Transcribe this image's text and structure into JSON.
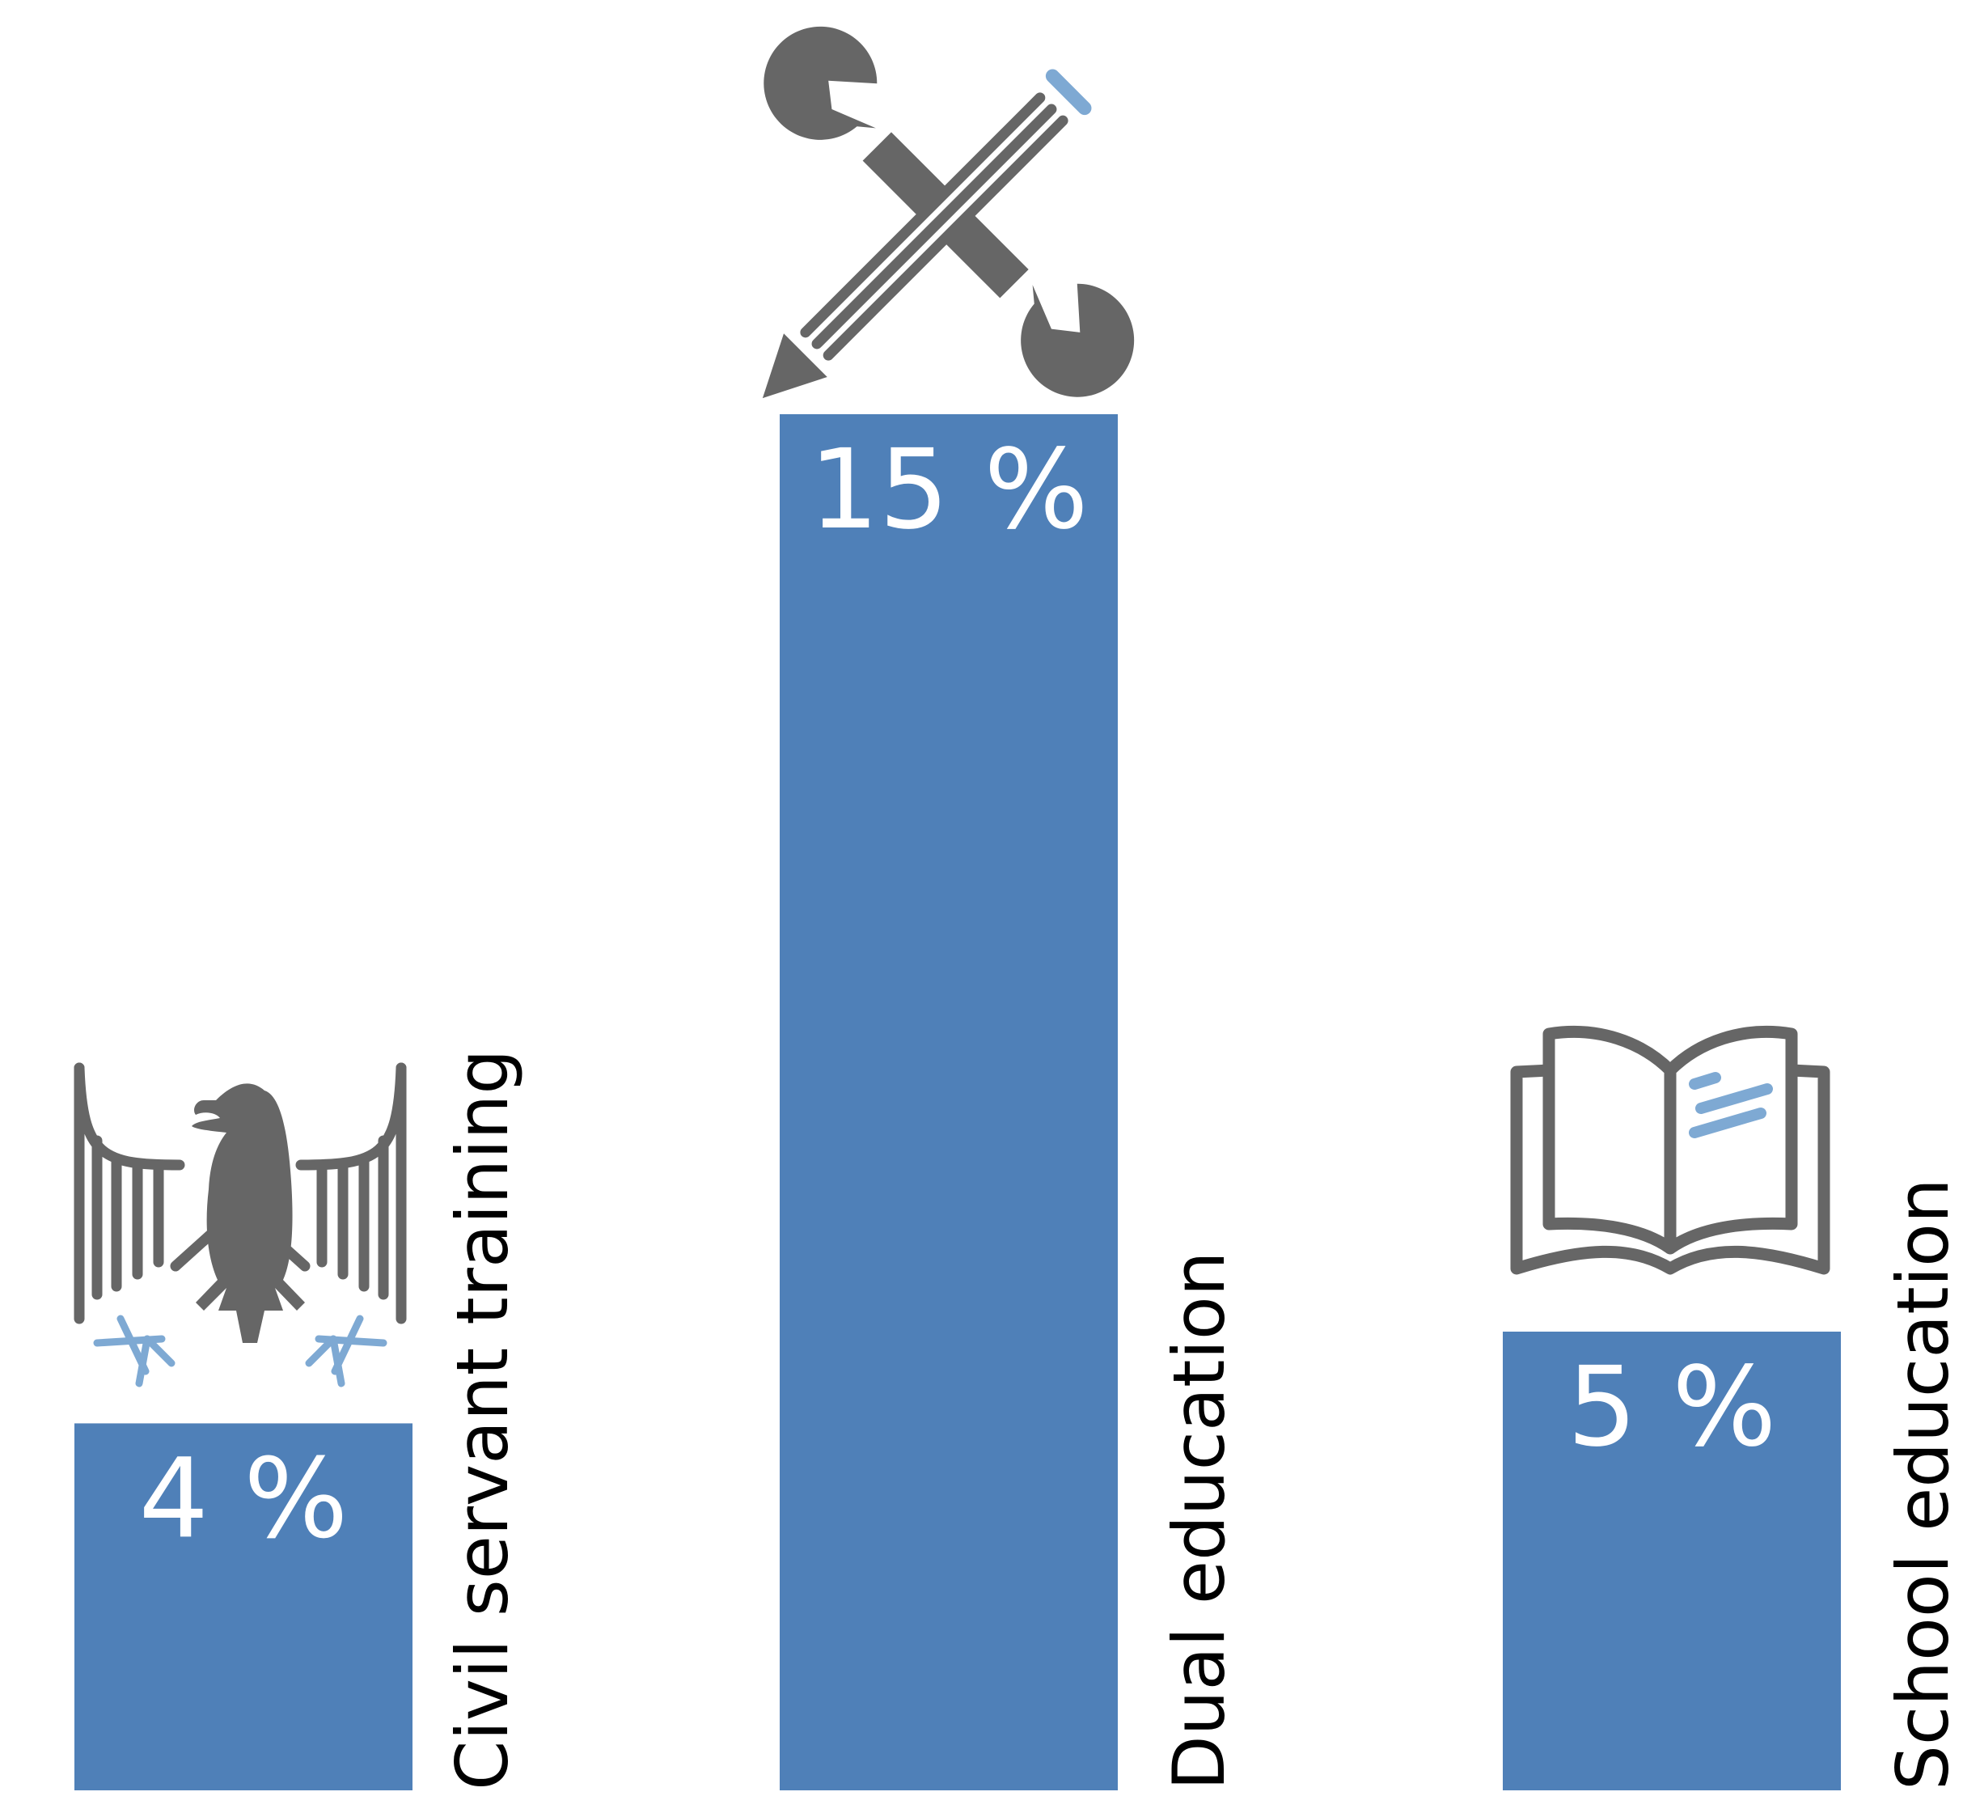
{
  "chart_data": {
    "type": "bar",
    "categories": [
      "Civil servant training",
      "Dual education",
      "School education"
    ],
    "values": [
      4,
      15,
      5
    ],
    "value_labels": [
      "4 %",
      "15 %",
      "5 %"
    ],
    "icons": [
      "eagle-icon",
      "tools-icon",
      "open-book-icon"
    ],
    "unit": "%",
    "ylim": [
      0,
      15
    ],
    "grid": false,
    "legend": "none"
  },
  "colors": {
    "bar": "#4f80b8",
    "icon_dark": "#666666",
    "icon_accent": "#7ea9d3",
    "value_text": "#ffffff",
    "category_text": "#000000"
  }
}
